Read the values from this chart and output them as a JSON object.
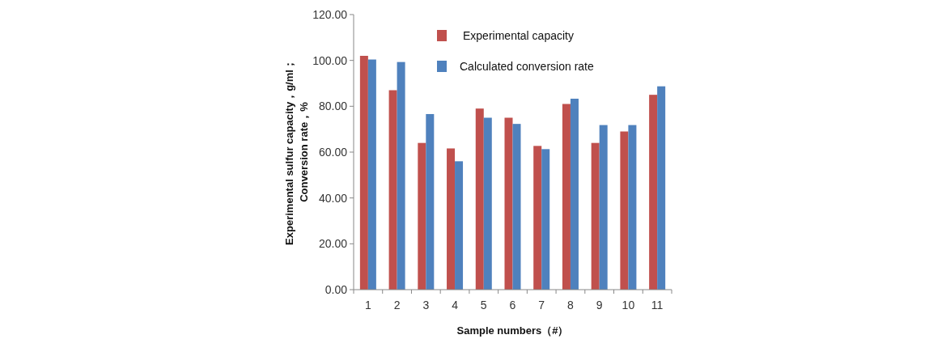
{
  "chart_data": {
    "type": "bar",
    "categories": [
      "1",
      "2",
      "3",
      "4",
      "5",
      "6",
      "7",
      "8",
      "9",
      "10",
      "11"
    ],
    "series": [
      {
        "name": "Experimental capacity",
        "color": "#c0504d",
        "values": [
          102,
          87,
          64,
          61.6,
          79,
          75,
          62.7,
          81,
          64,
          69,
          85
        ]
      },
      {
        "name": "Calculated conversion rate",
        "color": "#4f81bd",
        "values": [
          100.4,
          99.3,
          76.6,
          56,
          75,
          72.3,
          61.3,
          83.3,
          71.8,
          71.8,
          88.7
        ]
      }
    ],
    "xlabel": "Sample numbers（#）",
    "ylabel": "Experimental sulfur capacity，g/ml；\nConversion rate，%",
    "ylim": [
      0,
      120
    ],
    "yticks": [
      {
        "value": 0,
        "label": "0.00"
      },
      {
        "value": 20,
        "label": "20.00"
      },
      {
        "value": 40,
        "label": "40.00"
      },
      {
        "value": 60,
        "label": "60.00"
      },
      {
        "value": 80,
        "label": "80.00"
      },
      {
        "value": 100,
        "label": "100.00"
      },
      {
        "value": 120,
        "label": "120.00"
      }
    ],
    "grid": false,
    "legend": "top right"
  }
}
